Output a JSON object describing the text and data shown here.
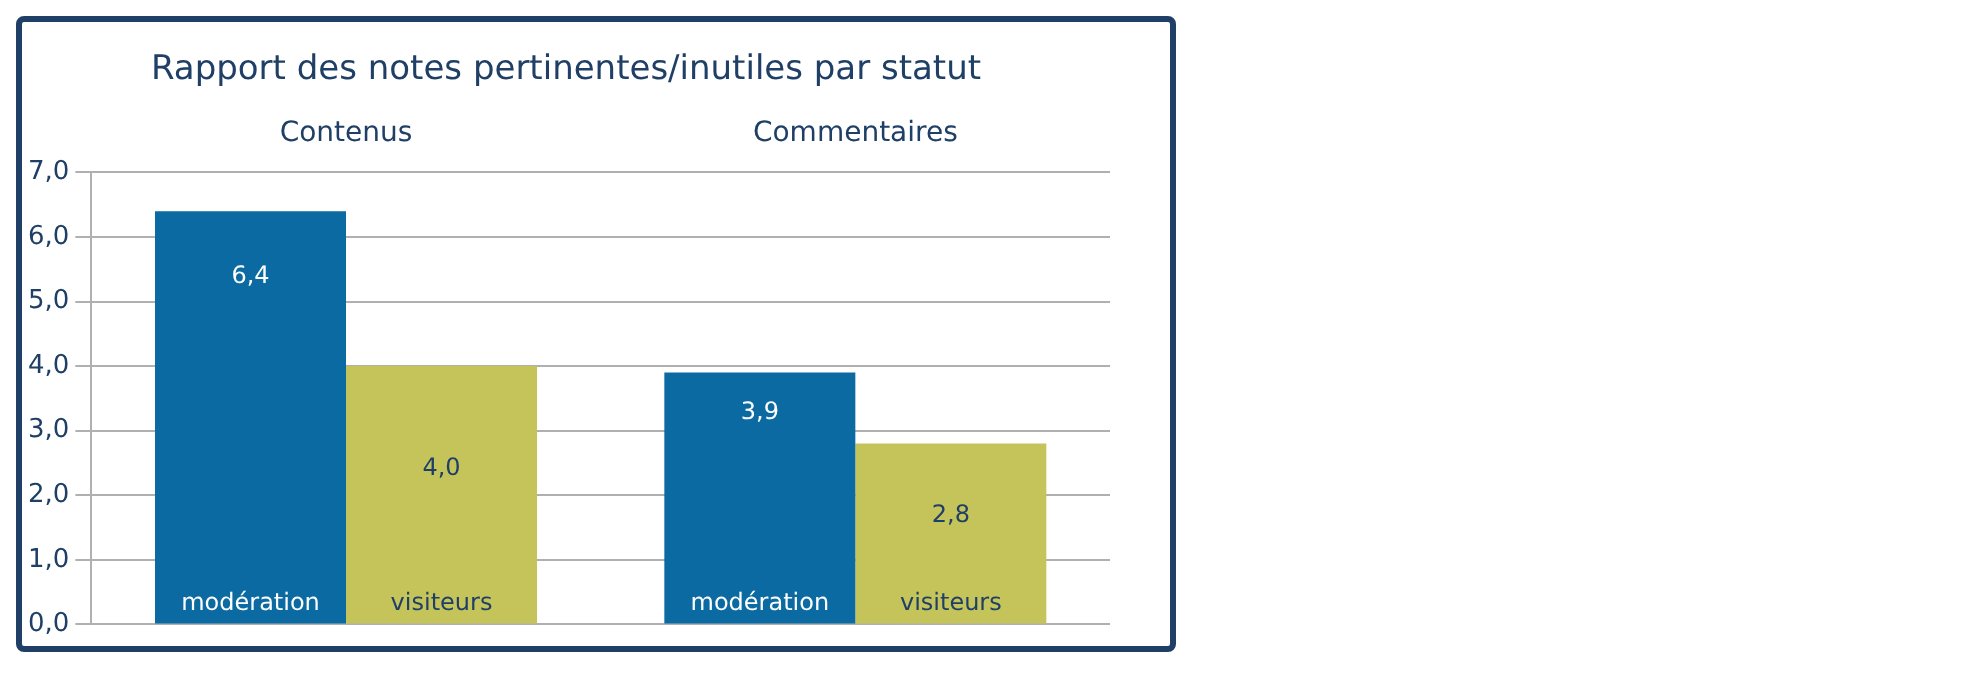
{
  "chart_data": {
    "type": "bar",
    "title": "Rapport des notes pertinentes/inutiles par statut",
    "categories": [
      "Contenus",
      "Commentaires"
    ],
    "series": [
      {
        "name": "modération",
        "color": "#0a6aa1",
        "values": [
          6.4,
          3.9
        ],
        "value_labels": [
          "6,4",
          "3,9"
        ]
      },
      {
        "name": "visiteurs",
        "color": "#c4c45a",
        "values": [
          4.0,
          2.8
        ],
        "value_labels": [
          "4,0",
          "2,8"
        ]
      }
    ],
    "ylim": [
      0,
      7
    ],
    "yticks": [
      {
        "value": 0,
        "label": "0,0"
      },
      {
        "value": 1,
        "label": "1,0"
      },
      {
        "value": 2,
        "label": "2,0"
      },
      {
        "value": 3,
        "label": "3,0"
      },
      {
        "value": 4,
        "label": "4,0"
      },
      {
        "value": 5,
        "label": "5,0"
      },
      {
        "value": 6,
        "label": "6,0"
      },
      {
        "value": 7,
        "label": "7,0"
      }
    ],
    "grid": "y",
    "legend": false
  }
}
